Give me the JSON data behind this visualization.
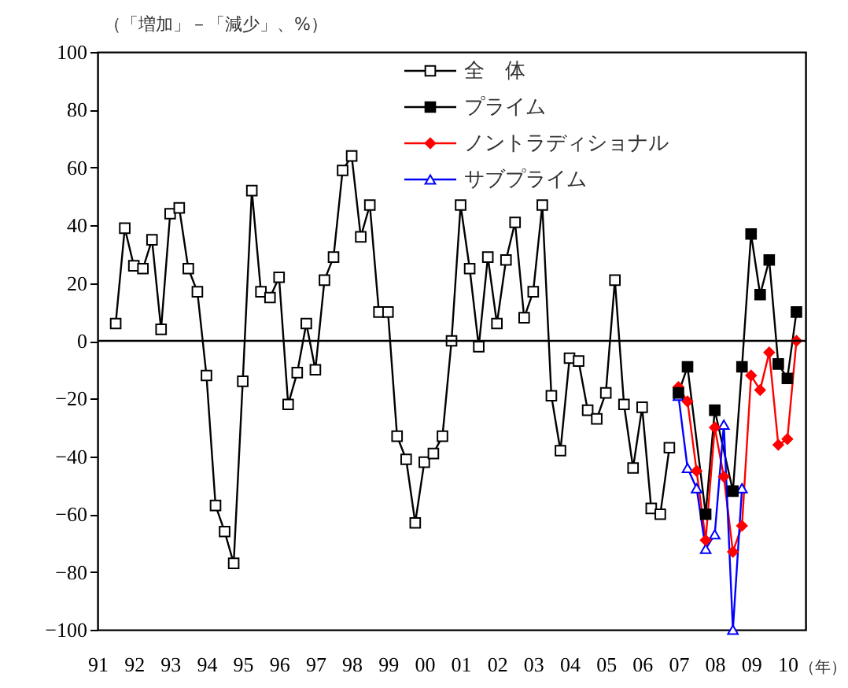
{
  "chart_data": {
    "type": "line",
    "ylabel": "（「増加」－「減少」、%）",
    "xlabel": "（年）",
    "x": [
      1991.5,
      1991.75,
      1992,
      1992.25,
      1992.5,
      1992.75,
      1993,
      1993.25,
      1993.5,
      1993.75,
      1994,
      1994.25,
      1994.5,
      1994.75,
      1995,
      1995.25,
      1995.5,
      1995.75,
      1996,
      1996.25,
      1996.5,
      1996.75,
      1997,
      1997.25,
      1997.5,
      1997.75,
      1998,
      1998.25,
      1998.5,
      1998.75,
      1999,
      1999.25,
      1999.5,
      1999.75,
      2000,
      2000.25,
      2000.5,
      2000.75,
      2001,
      2001.25,
      2001.5,
      2001.75,
      2002,
      2002.25,
      2002.5,
      2002.75,
      2003,
      2003.25,
      2003.5,
      2003.75,
      2004,
      2004.25,
      2004.5,
      2004.75,
      2005,
      2005.25,
      2005.5,
      2005.75,
      2006,
      2006.25,
      2006.5,
      2006.75
    ],
    "series": [
      {
        "name": "全　体",
        "color": "#000000",
        "marker": "square-open",
        "values": [
          6,
          39,
          26,
          25,
          35,
          4,
          44,
          46,
          25,
          17,
          -12,
          -57,
          -66,
          -77,
          -14,
          52,
          17,
          15,
          22,
          -22,
          -11,
          6,
          -10,
          21,
          29,
          59,
          64,
          36,
          47,
          10,
          10,
          -33,
          -41,
          -63,
          -42,
          -39,
          -33,
          0,
          47,
          25,
          -2,
          29,
          6,
          28,
          41,
          8,
          17,
          47,
          -19,
          -38,
          -6,
          -7,
          -24,
          -27,
          -18,
          21,
          -22,
          -44,
          -23,
          -58,
          -60,
          -37
        ]
      },
      {
        "name": "プライム",
        "color": "#000000",
        "marker": "square",
        "x": [
          2007,
          2007.25,
          2007.75,
          2008,
          2008.5,
          2008.75,
          2009,
          2009.25,
          2009.5,
          2009.75,
          2010,
          2010.25
        ],
        "values": [
          -18,
          -9,
          -60,
          -24,
          -52,
          -9,
          37,
          16,
          28,
          -8,
          -13,
          10
        ]
      },
      {
        "name": "ノントラディショナル",
        "color": "#ff0000",
        "marker": "diamond",
        "x": [
          2007,
          2007.25,
          2007.5,
          2007.75,
          2008,
          2008.25,
          2008.5,
          2008.75,
          2009,
          2009.25,
          2009.5,
          2009.75,
          2010,
          2010.25
        ],
        "values": [
          -16,
          -21,
          -45,
          -69,
          -30,
          -47,
          -73,
          -64,
          -12,
          -17,
          -4,
          -36,
          -34,
          0
        ]
      },
      {
        "name": "サブプライム",
        "color": "#0000ff",
        "marker": "triangle-open",
        "x": [
          2007,
          2007.25,
          2007.5,
          2007.75,
          2008,
          2008.25,
          2008.5,
          2008.75
        ],
        "values": [
          -19,
          -44,
          -51,
          -72,
          -67,
          -29,
          -100,
          -51
        ]
      }
    ],
    "xlim": [
      1991,
      2010.5
    ],
    "xticks": [
      {
        "value": 1991,
        "label": "91"
      },
      {
        "value": 1992,
        "label": "92"
      },
      {
        "value": 1993,
        "label": "93"
      },
      {
        "value": 1994,
        "label": "94"
      },
      {
        "value": 1995,
        "label": "95"
      },
      {
        "value": 1996,
        "label": "96"
      },
      {
        "value": 1997,
        "label": "97"
      },
      {
        "value": 1998,
        "label": "98"
      },
      {
        "value": 1999,
        "label": "99"
      },
      {
        "value": 2000,
        "label": "00"
      },
      {
        "value": 2001,
        "label": "01"
      },
      {
        "value": 2002,
        "label": "02"
      },
      {
        "value": 2003,
        "label": "03"
      },
      {
        "value": 2004,
        "label": "04"
      },
      {
        "value": 2005,
        "label": "05"
      },
      {
        "value": 2006,
        "label": "06"
      },
      {
        "value": 2007,
        "label": "07"
      },
      {
        "value": 2008,
        "label": "08"
      },
      {
        "value": 2009,
        "label": "09"
      },
      {
        "value": 2010,
        "label": "10"
      }
    ],
    "ylim": [
      -100,
      100
    ],
    "yticks": [
      -100,
      -80,
      -60,
      -40,
      -20,
      0,
      20,
      40,
      60,
      80,
      100
    ],
    "ref_lines": [
      {
        "axis": "y",
        "value": 0,
        "color": "#000000"
      }
    ],
    "grid": false,
    "legend": "top"
  }
}
